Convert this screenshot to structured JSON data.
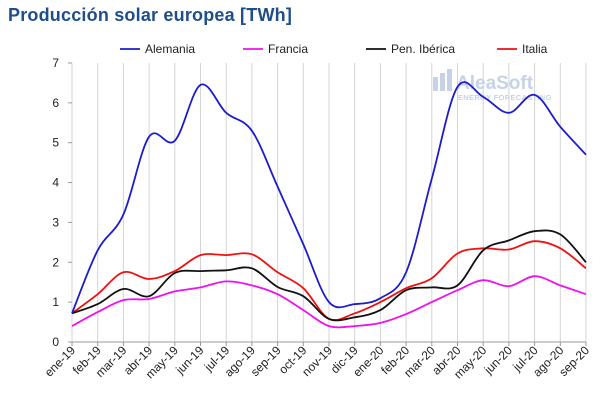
{
  "chart_data": {
    "type": "line",
    "title": "Producción solar europea [TWh]",
    "categories": [
      "ene-19",
      "feb-19",
      "mar-19",
      "abr-19",
      "may-19",
      "jun-19",
      "jul-19",
      "ago-19",
      "sep-19",
      "oct-19",
      "nov-19",
      "dic-19",
      "ene-20",
      "feb-20",
      "mar-20",
      "abr-20",
      "may-20",
      "jun-20",
      "jul-20",
      "ago-20",
      "sep-20"
    ],
    "ylim": [
      0,
      7
    ],
    "yticks": [
      "0",
      "1",
      "2",
      "3",
      "4",
      "5",
      "6",
      "7"
    ],
    "grid": "vertical",
    "legend_position": "top",
    "series": [
      {
        "name": "Alemania",
        "color": "#1c1ccc",
        "values": [
          0.72,
          2.3,
          3.2,
          5.15,
          5.05,
          6.45,
          5.75,
          5.3,
          3.9,
          2.45,
          1.0,
          0.95,
          1.1,
          1.75,
          4.1,
          6.4,
          6.15,
          5.75,
          6.2,
          5.4,
          4.7
        ]
      },
      {
        "name": "Francia",
        "color": "#ee11ee",
        "values": [
          0.4,
          0.75,
          1.05,
          1.08,
          1.27,
          1.37,
          1.52,
          1.42,
          1.2,
          0.8,
          0.4,
          0.4,
          0.48,
          0.7,
          1.0,
          1.3,
          1.55,
          1.4,
          1.65,
          1.42,
          1.2
        ]
      },
      {
        "name": "Pen. Ibérica",
        "color": "#111111",
        "values": [
          0.72,
          0.95,
          1.33,
          1.15,
          1.73,
          1.78,
          1.8,
          1.85,
          1.38,
          1.15,
          0.58,
          0.62,
          0.8,
          1.3,
          1.37,
          1.42,
          2.3,
          2.55,
          2.78,
          2.7,
          2.0
        ]
      },
      {
        "name": "Italia",
        "color": "#ee1111",
        "values": [
          0.72,
          1.2,
          1.75,
          1.58,
          1.78,
          2.18,
          2.18,
          2.2,
          1.75,
          1.35,
          0.58,
          0.72,
          1.0,
          1.35,
          1.6,
          2.22,
          2.35,
          2.32,
          2.53,
          2.35,
          1.85
        ]
      }
    ]
  },
  "watermark": {
    "brand": "AleaSoft",
    "tagline": "ENERGY FORECASTING",
    "color": "#c6d3e6"
  }
}
